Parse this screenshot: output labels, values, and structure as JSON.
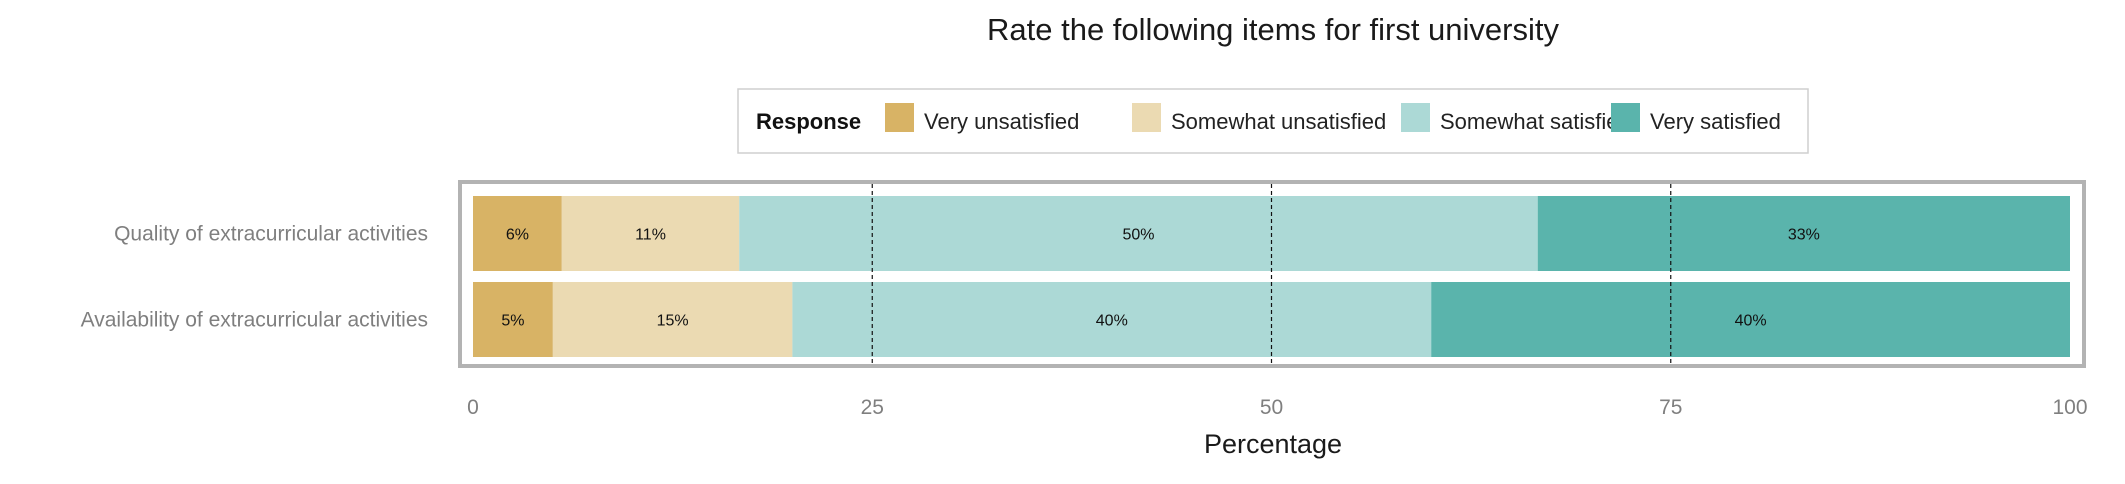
{
  "chart_data": {
    "type": "bar",
    "orientation": "horizontal",
    "stacked": true,
    "title": "Rate the following items for first university",
    "xlabel": "Percentage",
    "ylabel": "",
    "xlim": [
      0,
      100
    ],
    "xticks": [
      0,
      25,
      50,
      75,
      100
    ],
    "grid": "vertical dashed at major ticks",
    "legend": {
      "title": "Response",
      "placement": "top-center",
      "entries": [
        "Very unsatisfied",
        "Somewhat unsatisfied",
        "Somewhat satisfied",
        "Very satisfied"
      ]
    },
    "categories": [
      "Quality of extracurricular activities",
      "Availability of extracurricular activities"
    ],
    "series": [
      {
        "name": "Very unsatisfied",
        "color": "#d8b365",
        "values": [
          5.56,
          5.0
        ],
        "labels": [
          "6%",
          "5%"
        ]
      },
      {
        "name": "Somewhat unsatisfied",
        "color": "#ebdab2",
        "values": [
          11.11,
          15.0
        ],
        "labels": [
          "11%",
          "15%"
        ]
      },
      {
        "name": "Somewhat satisfied",
        "color": "#acd9d6",
        "values": [
          50.0,
          40.0
        ],
        "labels": [
          "50%",
          "40%"
        ]
      },
      {
        "name": "Very satisfied",
        "color": "#5ab4ac",
        "values": [
          33.33,
          40.0
        ],
        "labels": [
          "33%",
          "40%"
        ]
      }
    ]
  }
}
